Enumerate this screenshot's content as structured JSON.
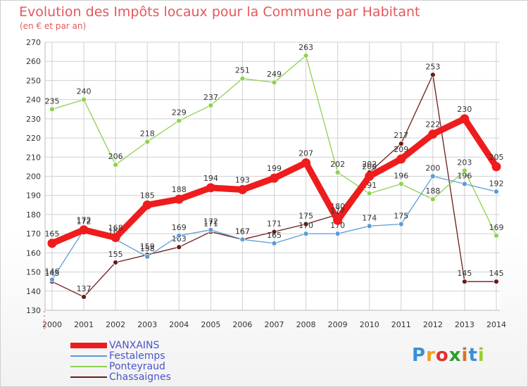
{
  "title": "Evolution des Impôts locaux pour la Commune par Habitant",
  "subtitle": "(en € et par an)",
  "brand": {
    "letters": [
      "P",
      "r",
      "o",
      "x",
      "i",
      "t",
      "i"
    ],
    "colors": [
      "#3a8fd6",
      "#f0a020",
      "#e03030",
      "#2aa02a",
      "#e07020",
      "#3a8fd6",
      "#9acd32"
    ]
  },
  "legend": [
    "VANXAINS",
    "Festalemps",
    "Ponteyraud",
    "Chassaignes"
  ],
  "chart_data": {
    "type": "line",
    "title": "Evolution des Impôts locaux pour la Commune par Habitant",
    "subtitle": "(en € et par an)",
    "categories": [
      "2000",
      "2001",
      "2002",
      "2003",
      "2004",
      "2005",
      "2006",
      "2007",
      "2008",
      "2009",
      "2010",
      "2011",
      "2012",
      "2013",
      "2014"
    ],
    "ylim": [
      130,
      270
    ],
    "yticks": [
      130,
      140,
      150,
      160,
      170,
      180,
      190,
      200,
      210,
      220,
      230,
      240,
      250,
      260,
      270
    ],
    "grid": true,
    "legend_position": "bottom-left",
    "series": [
      {
        "name": "VANXAINS",
        "color": "#ee1c1c",
        "values": [
          165,
          172,
          168,
          185,
          188,
          194,
          193,
          199,
          207,
          177,
          200,
          209,
          222,
          230,
          205
        ]
      },
      {
        "name": "Festalemps",
        "color": "#5b9bd5",
        "values": [
          146,
          172,
          167,
          158,
          169,
          172,
          167,
          165,
          170,
          170,
          174,
          175,
          200,
          196,
          192
        ]
      },
      {
        "name": "Ponteyraud",
        "color": "#8fd14f",
        "values": [
          235,
          240,
          206,
          218,
          229,
          237,
          251,
          249,
          263,
          202,
          191,
          196,
          188,
          203,
          169
        ]
      },
      {
        "name": "Chassaignes",
        "color": "#6b1a1a",
        "values": [
          145,
          137,
          155,
          159,
          163,
          171,
          167,
          171,
          175,
          180,
          202,
          217,
          253,
          145,
          145
        ]
      }
    ]
  }
}
